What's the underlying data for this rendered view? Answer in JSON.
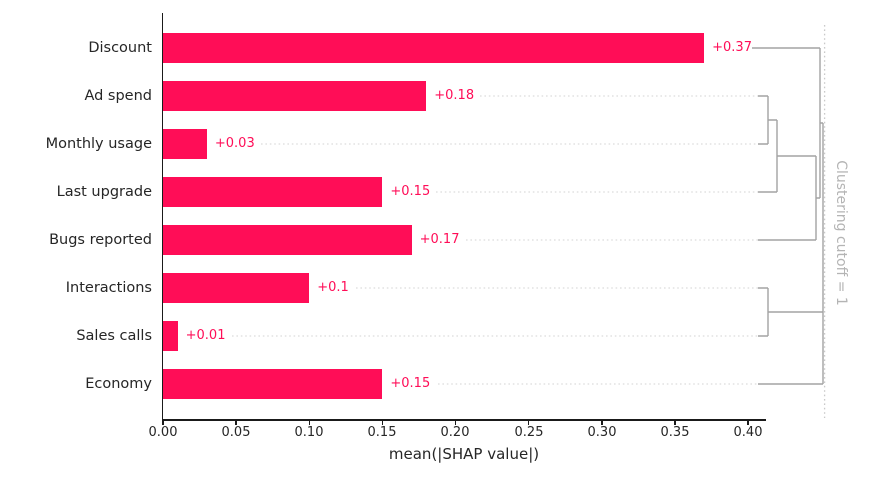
{
  "chart_data": {
    "type": "bar",
    "orientation": "horizontal",
    "title": "",
    "xlabel": "mean(|SHAP value|)",
    "ylabel": "",
    "categories": [
      "Discount",
      "Ad spend",
      "Monthly usage",
      "Last upgrade",
      "Bugs reported",
      "Interactions",
      "Sales calls",
      "Economy"
    ],
    "values": [
      0.37,
      0.18,
      0.03,
      0.15,
      0.17,
      0.1,
      0.01,
      0.15
    ],
    "value_labels": [
      "+0.37",
      "+0.18",
      "+0.03",
      "+0.15",
      "+0.17",
      "+0.1",
      "+0.01",
      "+0.15"
    ],
    "x_ticks": [
      "0.00",
      "0.05",
      "0.10",
      "0.15",
      "0.20",
      "0.25",
      "0.30",
      "0.35",
      "0.40"
    ],
    "xlim": [
      0,
      0.412
    ],
    "grid": false,
    "legend": null,
    "bar_color": "#ff0d57",
    "dendrogram_color": "#a3a3a3",
    "cutoff_annotation": "Clustering cutoff = 1",
    "clustering": {
      "cutoff": 1,
      "merges": [
        {
          "pair": [
            "Ad spend",
            "Monthly usage"
          ]
        },
        {
          "pair": [
            "Ad spend + Monthly usage",
            "Last upgrade"
          ]
        },
        {
          "pair": [
            "Ad spend + Monthly usage + Last upgrade",
            "Bugs reported"
          ]
        },
        {
          "pair": [
            "Discount",
            "Ad spend + Monthly usage + Last upgrade + Bugs reported"
          ]
        },
        {
          "pair": [
            "Interactions",
            "Sales calls"
          ]
        },
        {
          "pair": [
            "Interactions + Sales calls",
            "Economy"
          ]
        }
      ]
    }
  }
}
